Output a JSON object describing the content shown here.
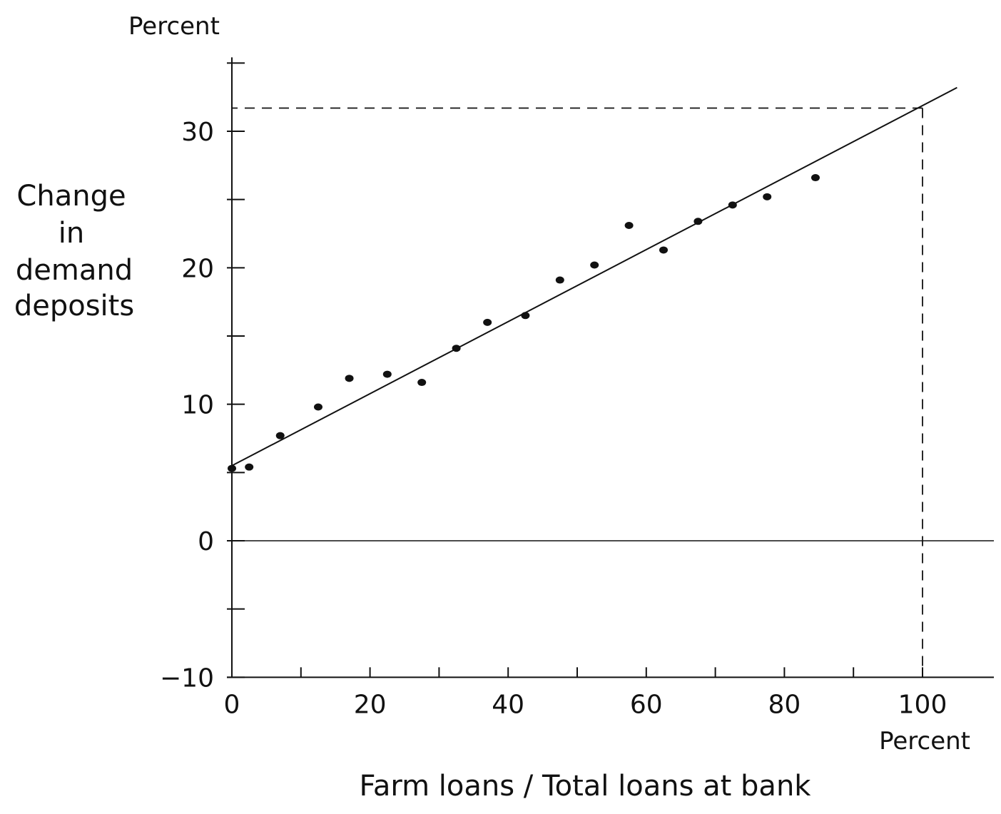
{
  "chart_data": {
    "type": "scatter",
    "title": "",
    "xlabel": "Farm loans / Total loans at bank",
    "x_unit": "Percent",
    "ylabel_lines": [
      "Change",
      "in",
      "demand",
      "deposits"
    ],
    "y_unit": "Percent",
    "xlim": [
      0,
      110
    ],
    "ylim": [
      -10,
      35
    ],
    "x_ticks": [
      0,
      20,
      40,
      60,
      80,
      100
    ],
    "x_minor_ticks": [
      10,
      30,
      50,
      70,
      90
    ],
    "y_ticks": [
      -10,
      0,
      10,
      20,
      30
    ],
    "y_minor_ticks": [
      -5,
      5,
      15,
      25,
      35
    ],
    "points": [
      {
        "x": 0,
        "y": 5.3
      },
      {
        "x": 2.5,
        "y": 5.4
      },
      {
        "x": 7,
        "y": 7.7
      },
      {
        "x": 12.5,
        "y": 9.8
      },
      {
        "x": 17,
        "y": 11.9
      },
      {
        "x": 22.5,
        "y": 12.2
      },
      {
        "x": 27.5,
        "y": 11.6
      },
      {
        "x": 32.5,
        "y": 14.1
      },
      {
        "x": 37,
        "y": 16
      },
      {
        "x": 42.5,
        "y": 16.5
      },
      {
        "x": 47.5,
        "y": 19.1
      },
      {
        "x": 52.5,
        "y": 20.2
      },
      {
        "x": 57.5,
        "y": 23.1
      },
      {
        "x": 62.5,
        "y": 21.3
      },
      {
        "x": 67.5,
        "y": 23.4
      },
      {
        "x": 72.5,
        "y": 24.6
      },
      {
        "x": 77.5,
        "y": 25.2
      },
      {
        "x": 84.5,
        "y": 26.6
      }
    ],
    "fit_line": {
      "x": [
        0,
        105
      ],
      "y": [
        5.5,
        33.2
      ]
    },
    "reference": {
      "x": 100,
      "y": 31.7
    },
    "grid": false,
    "legend": "none"
  }
}
